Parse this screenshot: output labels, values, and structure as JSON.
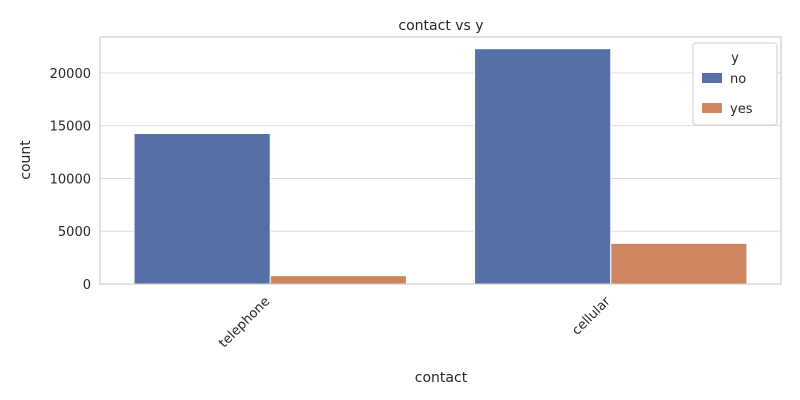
{
  "chart_data": {
    "type": "bar",
    "title": "contact vs y",
    "xlabel": "contact",
    "ylabel": "count",
    "categories": [
      "telephone",
      "cellular"
    ],
    "series": [
      {
        "name": "no",
        "values": [
          14257,
          22291
        ],
        "color": "#5470a4"
      },
      {
        "name": "yes",
        "values": [
          787,
          3853
        ],
        "color": "#cf8660"
      }
    ],
    "ylim": [
      0,
      23400
    ],
    "yticks": [
      0,
      5000,
      10000,
      15000,
      20000
    ],
    "legend": {
      "title": "y",
      "position": "top-right"
    },
    "grid": true
  }
}
